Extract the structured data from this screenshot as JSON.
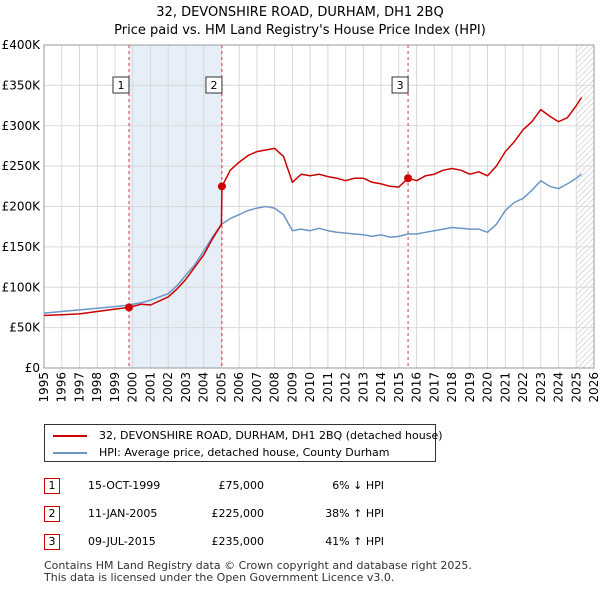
{
  "chart_data": {
    "type": "line",
    "title": "32, DEVONSHIRE ROAD, DURHAM, DH1 2BQ",
    "subtitle": "Price paid vs. HM Land Registry's House Price Index (HPI)",
    "xlim": [
      1995,
      2026
    ],
    "ylim": [
      0,
      400000
    ],
    "x_ticks": [
      "1995",
      "1996",
      "1997",
      "1998",
      "1999",
      "2000",
      "2001",
      "2002",
      "2003",
      "2004",
      "2005",
      "2006",
      "2007",
      "2008",
      "2009",
      "2010",
      "2011",
      "2012",
      "2013",
      "2014",
      "2015",
      "2016",
      "2017",
      "2018",
      "2019",
      "2020",
      "2021",
      "2022",
      "2023",
      "2024",
      "2025",
      "2026"
    ],
    "y_ticks": [
      {
        "value": 0,
        "label": "£0"
      },
      {
        "value": 50000,
        "label": "£50K"
      },
      {
        "value": 100000,
        "label": "£100K"
      },
      {
        "value": 150000,
        "label": "£150K"
      },
      {
        "value": 200000,
        "label": "£200K"
      },
      {
        "value": 250000,
        "label": "£250K"
      },
      {
        "value": 300000,
        "label": "£300K"
      },
      {
        "value": 350000,
        "label": "£350K"
      },
      {
        "value": 400000,
        "label": "£400K"
      }
    ],
    "grid": true,
    "shaded_periods": [
      [
        1999.79,
        2005.03
      ],
      [
        2015.52,
        2015.52
      ]
    ],
    "forecast_from": 2025.0,
    "colors": {
      "property": "#cc0000",
      "hpi": "#6b96c8",
      "shade": "#e6eef8",
      "grid": "#d9d9d9",
      "sale_line": "#d04040"
    },
    "series": [
      {
        "name": "32, DEVONSHIRE ROAD, DURHAM, DH1 2BQ (detached house)",
        "x": [
          1995.0,
          1996.0,
          1997.0,
          1998.0,
          1999.0,
          1999.79,
          2000.5,
          2001.0,
          2002.0,
          2002.5,
          2003.0,
          2003.5,
          2004.0,
          2004.5,
          2005.0,
          2005.03,
          2005.5,
          2006.0,
          2006.5,
          2007.0,
          2007.5,
          2008.0,
          2008.5,
          2009.0,
          2009.5,
          2010.0,
          2010.5,
          2011.0,
          2011.5,
          2012.0,
          2012.5,
          2013.0,
          2013.5,
          2014.0,
          2014.5,
          2015.0,
          2015.52,
          2016.0,
          2016.5,
          2017.0,
          2017.5,
          2018.0,
          2018.5,
          2019.0,
          2019.5,
          2020.0,
          2020.5,
          2021.0,
          2021.5,
          2022.0,
          2022.5,
          2023.0,
          2023.5,
          2024.0,
          2024.5,
          2025.0,
          2025.3
        ],
        "values": [
          65000,
          66000,
          67000,
          70000,
          73000,
          75000,
          79000,
          78000,
          88000,
          98000,
          110000,
          125000,
          140000,
          160000,
          178000,
          225000,
          245000,
          255000,
          263000,
          268000,
          270000,
          272000,
          262000,
          230000,
          240000,
          238000,
          240000,
          237000,
          235000,
          232000,
          235000,
          235000,
          230000,
          228000,
          225000,
          224000,
          235000,
          232000,
          238000,
          240000,
          245000,
          247000,
          245000,
          240000,
          243000,
          238000,
          250000,
          268000,
          280000,
          295000,
          305000,
          320000,
          312000,
          305000,
          310000,
          325000,
          335000
        ]
      },
      {
        "name": "HPI: Average price, detached house, County Durham",
        "x": [
          1995.0,
          1996.0,
          1997.0,
          1998.0,
          1999.0,
          1999.79,
          2000.5,
          2001.0,
          2002.0,
          2002.5,
          2003.0,
          2003.5,
          2004.0,
          2004.5,
          2005.0,
          2005.5,
          2006.0,
          2006.5,
          2007.0,
          2007.5,
          2008.0,
          2008.5,
          2009.0,
          2009.5,
          2010.0,
          2010.5,
          2011.0,
          2011.5,
          2012.0,
          2012.5,
          2013.0,
          2013.5,
          2014.0,
          2014.5,
          2015.0,
          2015.52,
          2016.0,
          2016.5,
          2017.0,
          2017.5,
          2018.0,
          2018.5,
          2019.0,
          2019.5,
          2020.0,
          2020.5,
          2021.0,
          2021.5,
          2022.0,
          2022.5,
          2023.0,
          2023.5,
          2024.0,
          2024.5,
          2025.0,
          2025.3
        ],
        "values": [
          68000,
          70000,
          72000,
          74000,
          76000,
          78000,
          81000,
          84000,
          92000,
          102000,
          115000,
          128000,
          145000,
          162000,
          178000,
          185000,
          190000,
          195000,
          198000,
          200000,
          198000,
          190000,
          170000,
          172000,
          170000,
          173000,
          170000,
          168000,
          167000,
          166000,
          165000,
          163000,
          165000,
          162000,
          163000,
          166000,
          166000,
          168000,
          170000,
          172000,
          174000,
          173000,
          172000,
          172000,
          168000,
          178000,
          195000,
          205000,
          210000,
          220000,
          232000,
          225000,
          222000,
          228000,
          235000,
          240000
        ]
      }
    ],
    "markers": [
      {
        "label": "1",
        "x": 1999.79,
        "y": 75000
      },
      {
        "label": "2",
        "x": 2005.03,
        "y": 225000
      },
      {
        "label": "3",
        "x": 2015.52,
        "y": 235000
      }
    ]
  },
  "legend": {
    "property_label": "32, DEVONSHIRE ROAD, DURHAM, DH1 2BQ (detached house)",
    "hpi_label": "HPI: Average price, detached house, County Durham"
  },
  "transactions": [
    {
      "num": "1",
      "date": "15-OCT-1999",
      "price": "£75,000",
      "hpi": "6% ↓ HPI"
    },
    {
      "num": "2",
      "date": "11-JAN-2005",
      "price": "£225,000",
      "hpi": "38% ↑ HPI"
    },
    {
      "num": "3",
      "date": "09-JUL-2015",
      "price": "£235,000",
      "hpi": "41% ↑ HPI"
    }
  ],
  "footer": {
    "line1": "Contains HM Land Registry data © Crown copyright and database right 2025.",
    "line2": "This data is licensed under the Open Government Licence v3.0."
  }
}
